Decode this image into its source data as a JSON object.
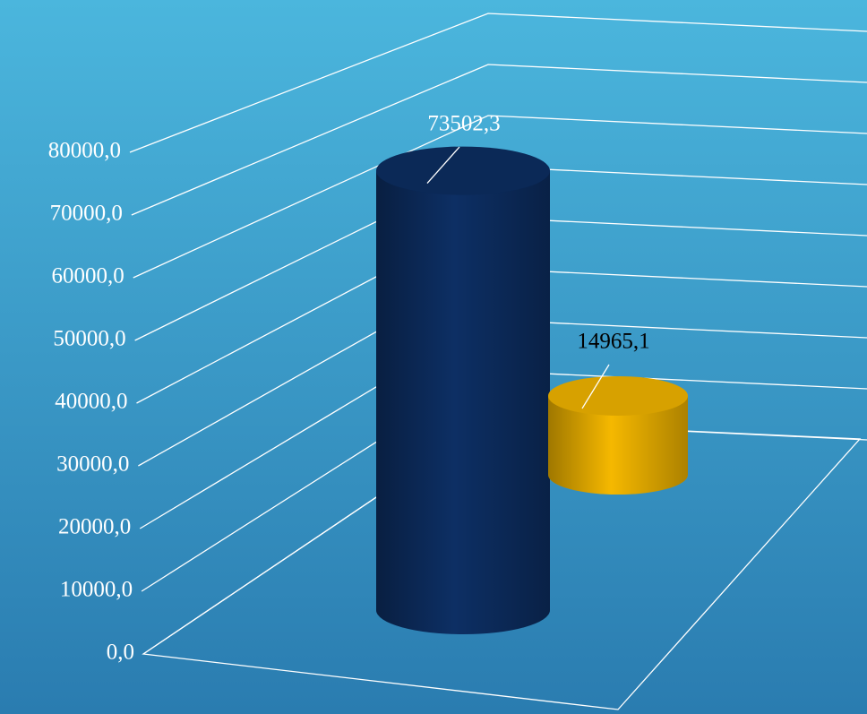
{
  "chart_data": {
    "type": "bar3d",
    "categories": [
      null
    ],
    "series": [
      {
        "color": "#0d2f64",
        "values": [
          73502.3
        ],
        "value_labels": [
          "73502,3"
        ]
      },
      {
        "color": "#f5b800",
        "values": [
          14965.1
        ],
        "value_labels": [
          "14965,1"
        ]
      }
    ],
    "ylim": [
      0,
      80000
    ],
    "yticks": [
      {
        "value": 0,
        "label": "0,0"
      },
      {
        "value": 10000,
        "label": "10000,0"
      },
      {
        "value": 20000,
        "label": "20000,0"
      },
      {
        "value": 30000,
        "label": "30000,0"
      },
      {
        "value": 40000,
        "label": "40000,0"
      },
      {
        "value": 50000,
        "label": "50000,0"
      },
      {
        "value": 60000,
        "label": "60000,0"
      },
      {
        "value": 70000,
        "label": "70000,0"
      },
      {
        "value": 80000,
        "label": "80000,0"
      }
    ],
    "grid": true
  }
}
